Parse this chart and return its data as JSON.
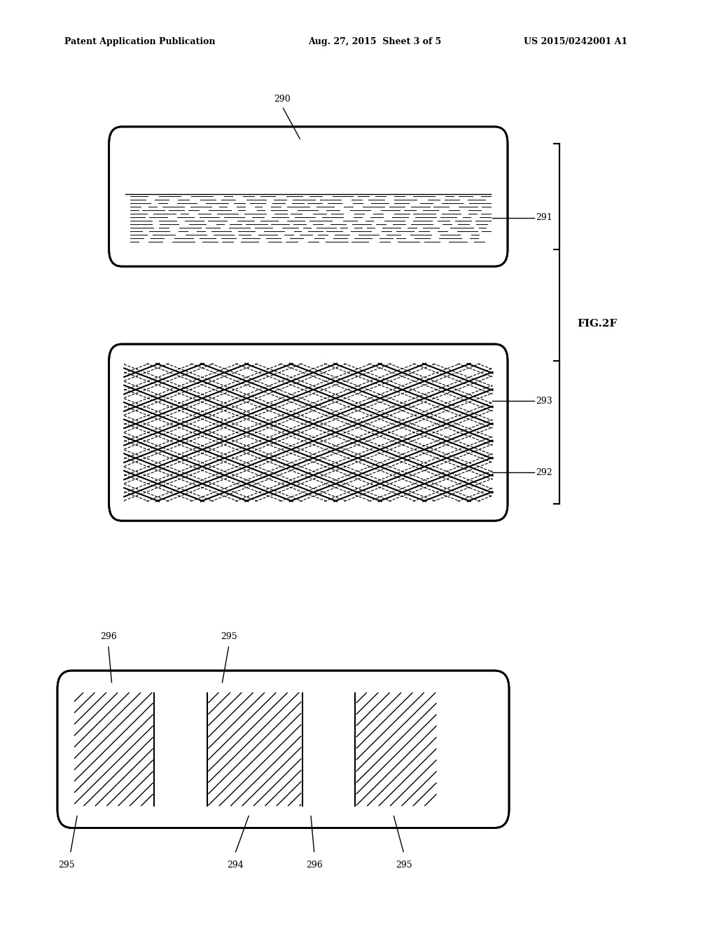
{
  "bg_color": "#ffffff",
  "header_left": "Patent Application Publication",
  "header_mid": "Aug. 27, 2015  Sheet 3 of 5",
  "header_right": "US 2015/0242001 A1",
  "fig_label": "FIG.2F"
}
